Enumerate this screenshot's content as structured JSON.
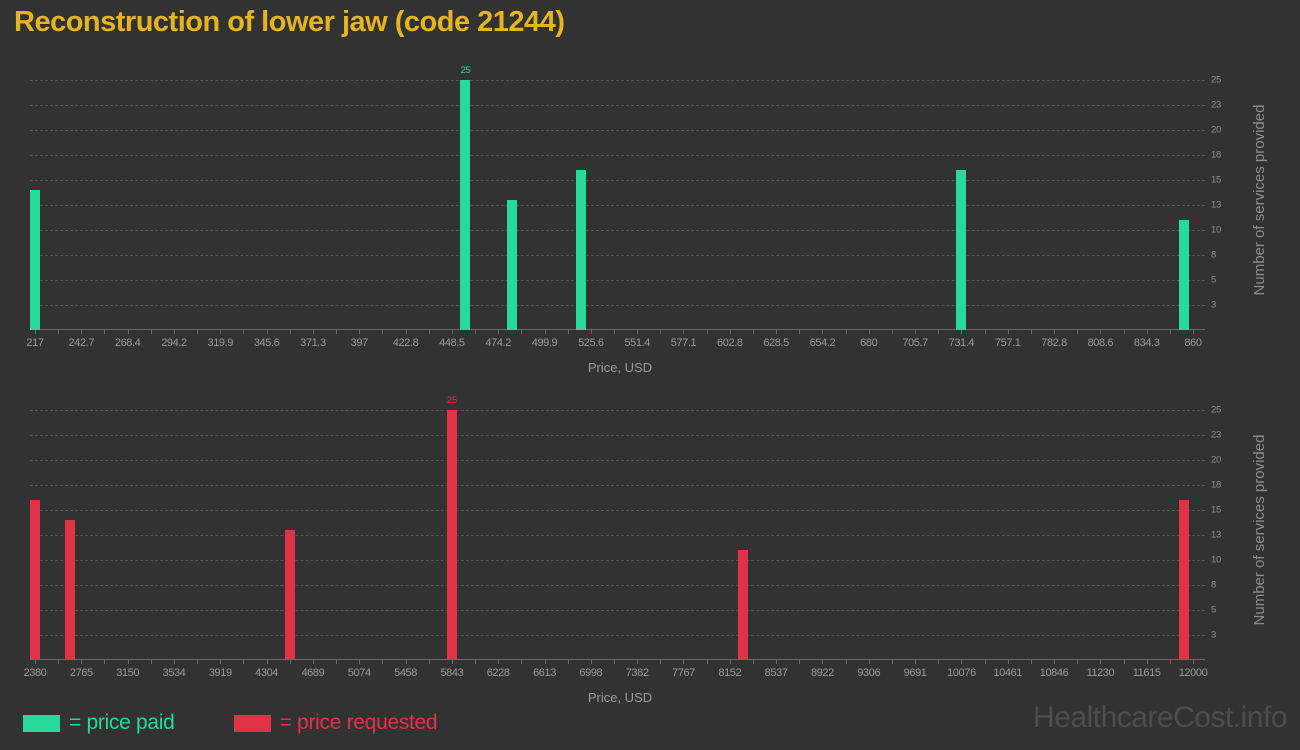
{
  "title": "Reconstruction of lower jaw (code 21244)",
  "watermark": "HealthcareCost.info",
  "legend": {
    "paid_label": "= price paid",
    "requested_label": "= price requested"
  },
  "colors": {
    "background": "#323232",
    "title": "#e6b41e",
    "paid": "#27d99b",
    "requested": "#e13347",
    "grid": "#565656",
    "axis": "#6a6a6a",
    "x_tick_text": "#9b9b9b",
    "y_tick_text": "#8f8f8f",
    "axis_title_text": "#8d8d8d",
    "watermark": "#4d4d4d"
  },
  "chart_data": [
    {
      "type": "bar",
      "name": "price-paid-histogram",
      "series": "price paid",
      "color": "#27d99b",
      "xlabel": "Price, USD",
      "ylabel": "Number of services provided",
      "x_range": [
        217,
        860
      ],
      "x_ticks": [
        "217",
        "242.7",
        "268.4",
        "294.2",
        "319.9",
        "345.6",
        "371.3",
        "397",
        "422.8",
        "448.5",
        "474.2",
        "499.9",
        "525.6",
        "551.4",
        "577.1",
        "602.8",
        "628.5",
        "654.2",
        "680",
        "705.7",
        "731.4",
        "757.1",
        "782.8",
        "808.6",
        "834.3",
        "860"
      ],
      "ylim": [
        0,
        26
      ],
      "grid": true,
      "y_ticks": [
        {
          "value": 2.5,
          "label": "3"
        },
        {
          "value": 5,
          "label": "5"
        },
        {
          "value": 7.5,
          "label": "8"
        },
        {
          "value": 10,
          "label": "10"
        },
        {
          "value": 12.5,
          "label": "13"
        },
        {
          "value": 15,
          "label": "15"
        },
        {
          "value": 17.5,
          "label": "18"
        },
        {
          "value": 20,
          "label": "20"
        },
        {
          "value": 22.5,
          "label": "23"
        },
        {
          "value": 25,
          "label": "25"
        }
      ],
      "bars": [
        {
          "x": 217,
          "count": 14
        },
        {
          "x": 456,
          "count": 25,
          "label": "25"
        },
        {
          "x": 482,
          "count": 13
        },
        {
          "x": 520,
          "count": 16
        },
        {
          "x": 731,
          "count": 16
        },
        {
          "x": 855,
          "count": 11
        }
      ]
    },
    {
      "type": "bar",
      "name": "price-requested-histogram",
      "series": "price requested",
      "color": "#e13347",
      "xlabel": "Price, USD",
      "ylabel": "Number of services provided",
      "x_range": [
        2380,
        12000
      ],
      "x_ticks": [
        "2380",
        "2765",
        "3150",
        "3534",
        "3919",
        "4304",
        "4689",
        "5074",
        "5458",
        "5843",
        "6228",
        "6613",
        "6998",
        "7382",
        "7767",
        "8152",
        "8537",
        "8922",
        "9306",
        "9691",
        "10076",
        "10461",
        "10846",
        "11230",
        "11615",
        "12000"
      ],
      "ylim": [
        0,
        26
      ],
      "grid": true,
      "y_ticks": [
        {
          "value": 2.5,
          "label": "3"
        },
        {
          "value": 5,
          "label": "5"
        },
        {
          "value": 7.5,
          "label": "8"
        },
        {
          "value": 10,
          "label": "10"
        },
        {
          "value": 12.5,
          "label": "13"
        },
        {
          "value": 15,
          "label": "15"
        },
        {
          "value": 17.5,
          "label": "18"
        },
        {
          "value": 20,
          "label": "20"
        },
        {
          "value": 22.5,
          "label": "23"
        },
        {
          "value": 25,
          "label": "25"
        }
      ],
      "bars": [
        {
          "x": 2380,
          "count": 16
        },
        {
          "x": 2671,
          "count": 14
        },
        {
          "x": 4500,
          "count": 13
        },
        {
          "x": 5843,
          "count": 25,
          "label": "25"
        },
        {
          "x": 8260,
          "count": 11
        },
        {
          "x": 11926,
          "count": 16
        }
      ]
    }
  ]
}
